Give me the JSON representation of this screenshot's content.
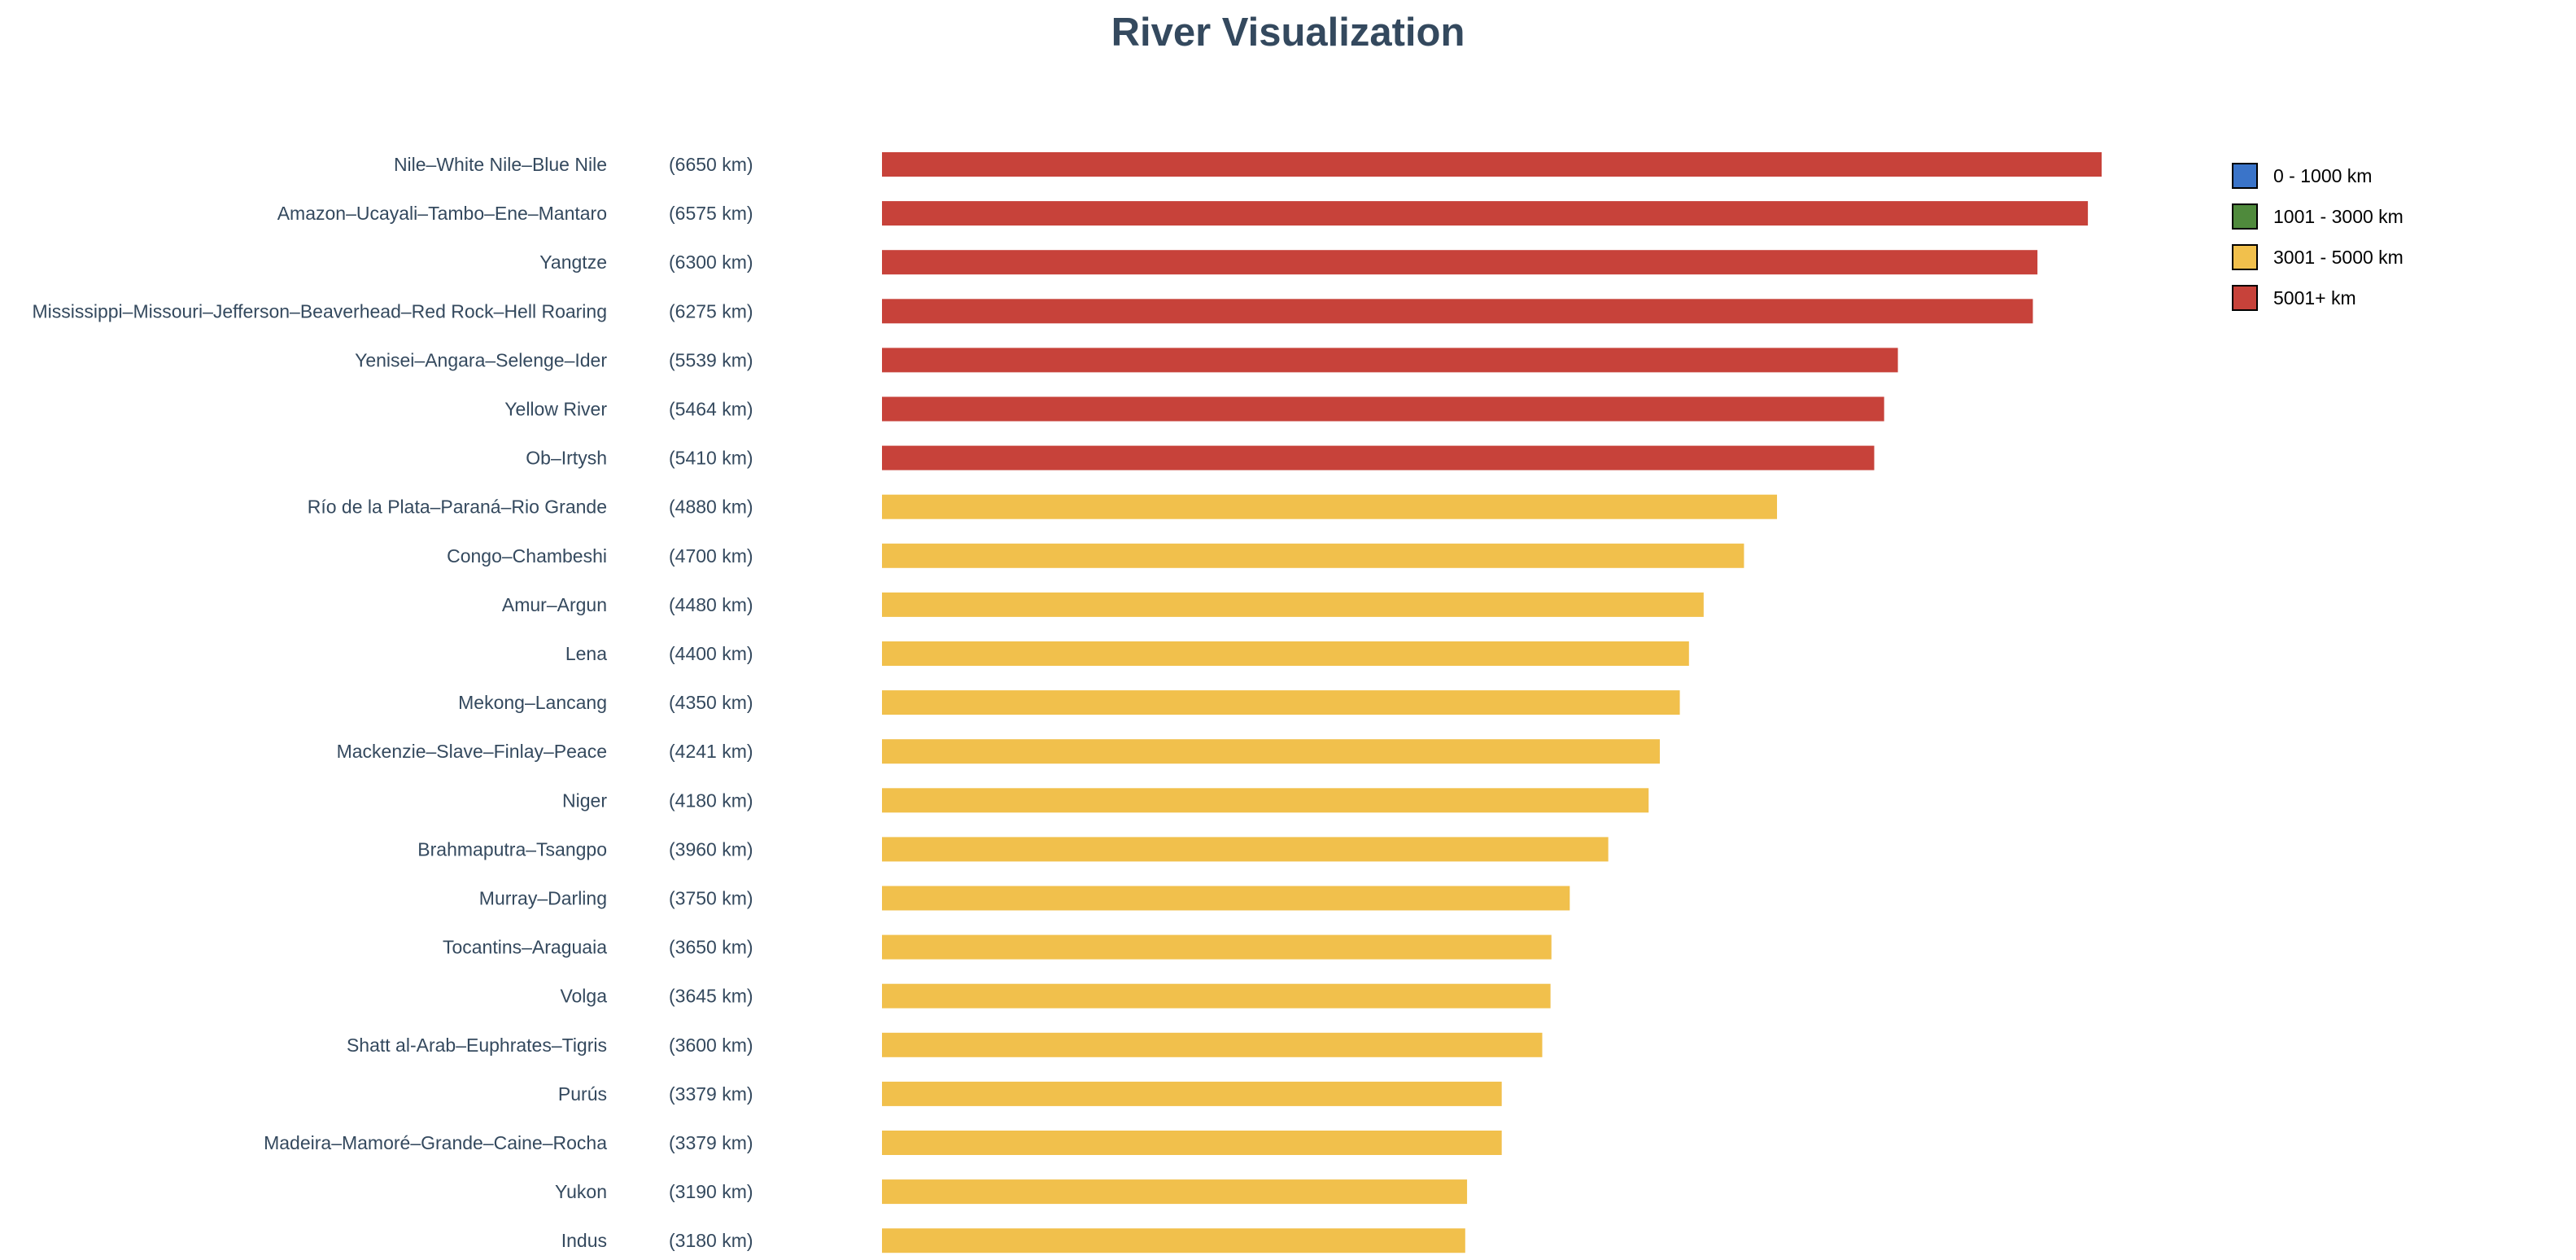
{
  "chart_data": {
    "type": "bar",
    "orientation": "horizontal",
    "title": "River Visualization",
    "unit_format": "({value} km)",
    "categories": [
      "Nile–White Nile–Blue Nile",
      "Amazon–Ucayali–Tambo–Ene–Mantaro",
      "Yangtze",
      "Mississippi–Missouri–Jefferson–Beaverhead–Red Rock–Hell Roaring",
      "Yenisei–Angara–Selenge–Ider",
      "Yellow River",
      "Ob–Irtysh",
      "Río de la Plata–Paraná–Rio Grande",
      "Congo–Chambeshi",
      "Amur–Argun",
      "Lena",
      "Mekong–Lancang",
      "Mackenzie–Slave–Finlay–Peace",
      "Niger",
      "Brahmaputra–Tsangpo",
      "Murray–Darling",
      "Tocantins–Araguaia",
      "Volga",
      "Shatt al-Arab–Euphrates–Tigris",
      "Purús",
      "Madeira–Mamoré–Grande–Caine–Rocha",
      "Yukon",
      "Indus"
    ],
    "values": [
      6650,
      6575,
      6300,
      6275,
      5539,
      5464,
      5410,
      4880,
      4700,
      4480,
      4400,
      4350,
      4241,
      4180,
      3960,
      3750,
      3650,
      3645,
      3600,
      3379,
      3379,
      3190,
      3180
    ],
    "xlim": [
      0,
      6650
    ],
    "grid": false,
    "legend": {
      "placement": "top-right",
      "entries": [
        {
          "label": "0 - 1000 km",
          "color": "#3a74c9",
          "min": 0,
          "max": 1000
        },
        {
          "label": "1001 - 3000 km",
          "color": "#4f8a3c",
          "min": 1001,
          "max": 3000
        },
        {
          "label": "3001 - 5000 km",
          "color": "#f1c04c",
          "min": 3001,
          "max": 5000
        },
        {
          "label": "5001+ km",
          "color": "#c7423a",
          "min": 5001,
          "max": null
        }
      ]
    }
  }
}
